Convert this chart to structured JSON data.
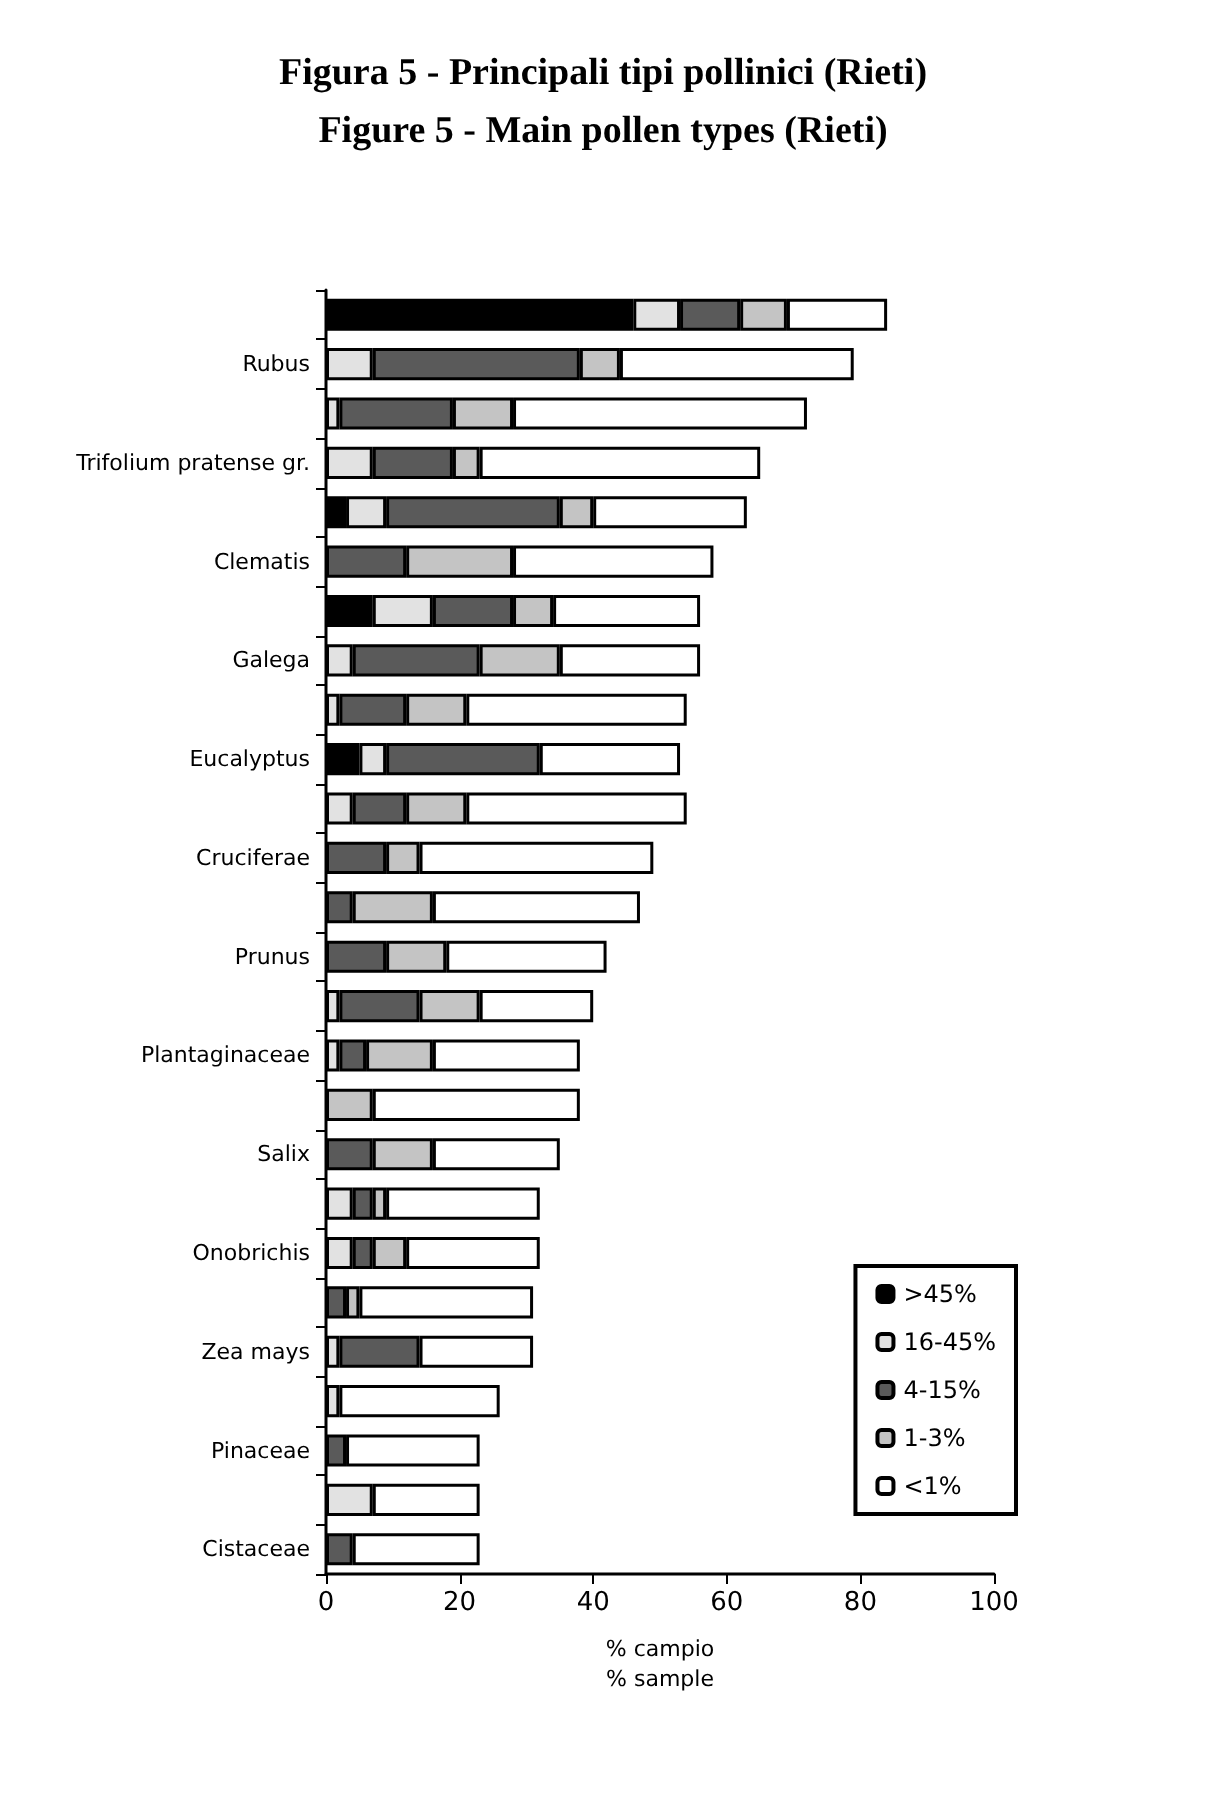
{
  "chart_data": {
    "type": "bar",
    "orientation": "horizontal",
    "stacked": true,
    "title": "Figura 5 - Principali tipi pollinici (Rieti)",
    "subtitle": "Figure 5 - Main pollen types (Rieti)",
    "xlabel": "% campio\n% sample",
    "categories": [
      null,
      "Rubus",
      null,
      "Trifolium pratense gr.",
      null,
      "Clematis",
      null,
      "Galega",
      null,
      "Eucalyptus",
      null,
      "Cruciferae",
      null,
      "Prunus",
      null,
      "Plantaginaceae",
      null,
      "Salix",
      null,
      "Onobrichis",
      null,
      "Zea mays",
      null,
      "Pinaceae",
      null,
      "Cistaceae"
    ],
    "series": [
      {
        "name": ">45%",
        "color": "#000000",
        "values": [
          46,
          0,
          0,
          0,
          3,
          0,
          7,
          0,
          0,
          5,
          0,
          0,
          0,
          0,
          0,
          0,
          0,
          0,
          0,
          0,
          0,
          0,
          0,
          0,
          0,
          0
        ]
      },
      {
        "name": "16-45%",
        "color": "#e2e2e2",
        "values": [
          7,
          7,
          2,
          7,
          6,
          0,
          9,
          4,
          2,
          4,
          4,
          0,
          0,
          0,
          2,
          2,
          0,
          0,
          4,
          4,
          0,
          2,
          2,
          0,
          7,
          0
        ]
      },
      {
        "name": "4-15%",
        "color": "#5a5a5a",
        "values": [
          9,
          31,
          17,
          12,
          26,
          12,
          12,
          19,
          10,
          23,
          8,
          9,
          4,
          9,
          12,
          4,
          0,
          7,
          3,
          3,
          3,
          12,
          0,
          3,
          0,
          4
        ]
      },
      {
        "name": "1-3%",
        "color": "#c4c4c4",
        "values": [
          7,
          6,
          9,
          4,
          5,
          16,
          6,
          12,
          9,
          0,
          9,
          5,
          12,
          9,
          9,
          10,
          7,
          9,
          2,
          5,
          2,
          0,
          0,
          0,
          0,
          0
        ]
      },
      {
        "name": "<1%",
        "color": "#ffffff",
        "values": [
          15,
          35,
          44,
          42,
          23,
          30,
          22,
          21,
          33,
          21,
          33,
          35,
          31,
          24,
          17,
          22,
          31,
          19,
          23,
          20,
          26,
          17,
          24,
          20,
          16,
          19
        ]
      }
    ],
    "xlim": [
      0,
      100
    ],
    "xticks": [
      0,
      20,
      40,
      60,
      80,
      100
    ],
    "legend": "bottom right"
  }
}
